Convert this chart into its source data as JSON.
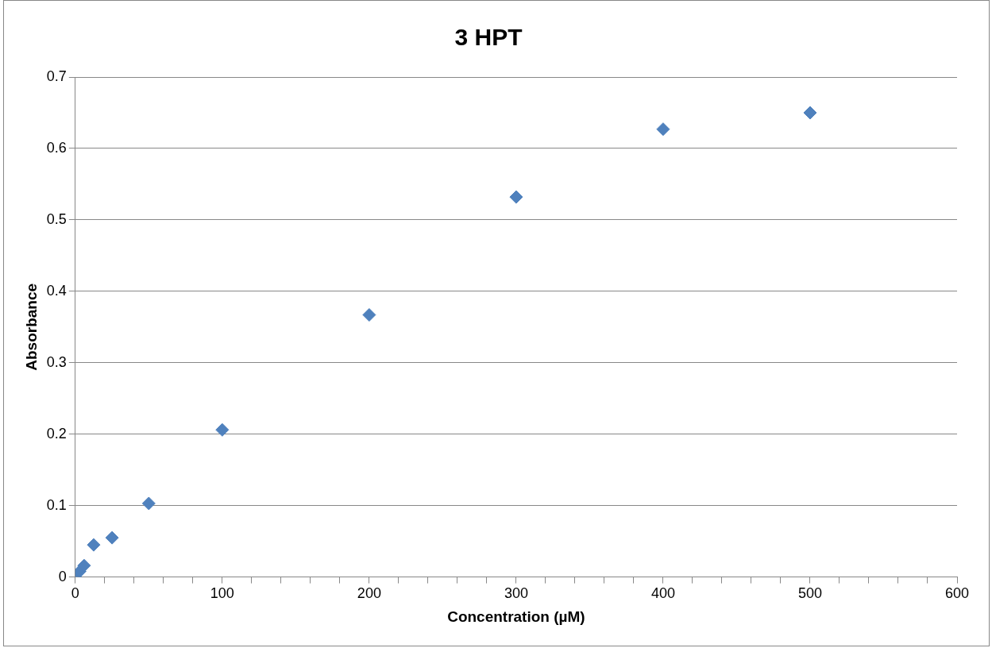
{
  "chart_data": {
    "type": "scatter",
    "title": "3 HPT",
    "xlabel": "Concentration (µM)",
    "ylabel": "Absorbance",
    "x": [
      0,
      1.5,
      3,
      6,
      12.5,
      25,
      50,
      100,
      200,
      300,
      400,
      500
    ],
    "series": [
      {
        "color": "#4f81bd",
        "values": [
          0,
          null,
          0.008,
          0.016,
          0.045,
          0.055,
          0.103,
          0.206,
          0.367,
          0.532,
          0.627,
          0.65
        ]
      }
    ],
    "xlim": [
      0,
      600
    ],
    "xticks": [
      0,
      {
        "value": 20,
        "label": null
      },
      {
        "value": 40,
        "label": null
      },
      {
        "value": 60,
        "label": null
      },
      {
        "value": 80,
        "label": null
      },
      100,
      {
        "value": 120,
        "label": null
      },
      {
        "value": 140,
        "label": null
      },
      {
        "value": 160,
        "label": null
      },
      {
        "value": 180,
        "label": null
      },
      200,
      {
        "value": 220,
        "label": null
      },
      {
        "value": 240,
        "label": null
      },
      {
        "value": 260,
        "label": null
      },
      {
        "value": 280,
        "label": null
      },
      300,
      {
        "value": 320,
        "label": null
      },
      {
        "value": 340,
        "label": null
      },
      {
        "value": 360,
        "label": null
      },
      {
        "value": 380,
        "label": null
      },
      400,
      {
        "value": 420,
        "label": null
      },
      {
        "value": 440,
        "label": null
      },
      {
        "value": 460,
        "label": null
      },
      {
        "value": 480,
        "label": null
      },
      500,
      {
        "value": 520,
        "label": null
      },
      {
        "value": 540,
        "label": null
      },
      {
        "value": 560,
        "label": null
      },
      {
        "value": 580,
        "label": null
      },
      600
    ],
    "ylim": [
      0,
      0.7
    ],
    "yticks": [
      0,
      0.1,
      0.2,
      0.3,
      0.4,
      0.5,
      0.6,
      0.7
    ],
    "grid": "y",
    "legend": false,
    "marker": "diamond"
  }
}
